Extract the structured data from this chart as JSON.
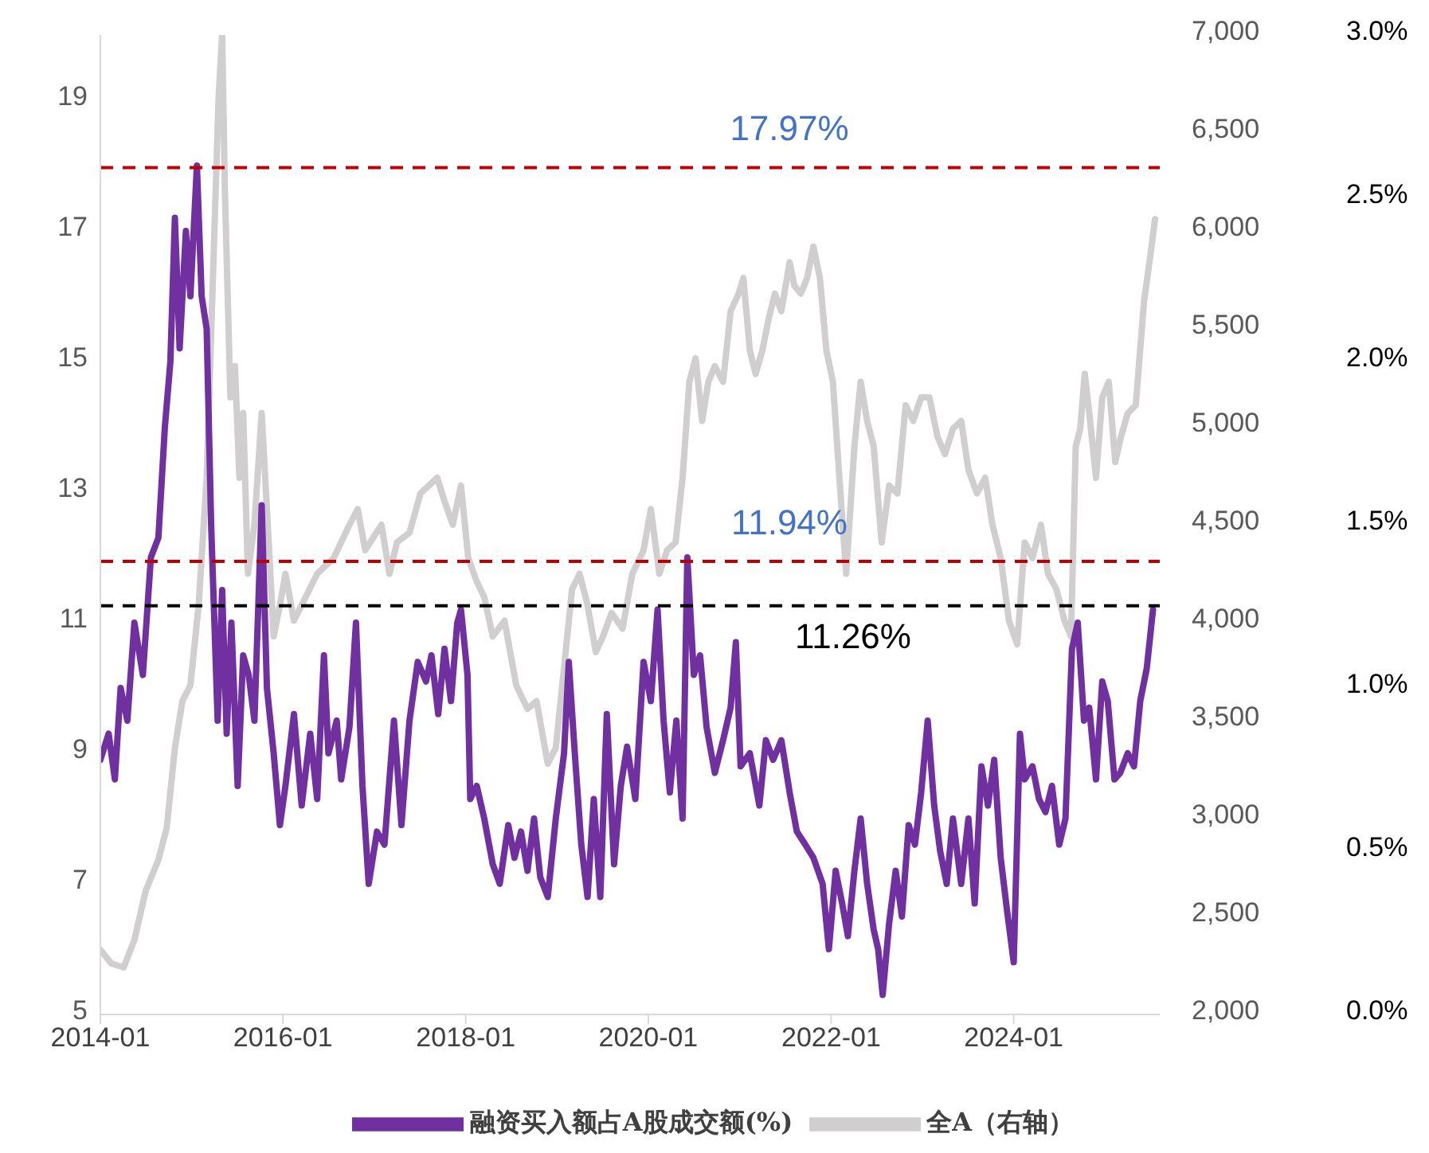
{
  "chart_data": {
    "type": "line",
    "xlim": [
      "2014-01-01",
      "2025-08-07"
    ],
    "xticks": [
      "2014-01",
      "2016-01",
      "2018-01",
      "2020-01",
      "2022-01",
      "2024-01"
    ],
    "ylim": [
      5,
      20
    ],
    "yticks": [
      5,
      7,
      9,
      11,
      13,
      15,
      17,
      19
    ],
    "y2lim": [
      2000,
      7000
    ],
    "y2ticks": [
      {
        "value": 2000,
        "label": "2,000"
      },
      {
        "value": 2500,
        "label": "2,500"
      },
      {
        "value": 3000,
        "label": "3,000"
      },
      {
        "value": 3500,
        "label": "3,500"
      },
      {
        "value": 4000,
        "label": "4,000"
      },
      {
        "value": 4500,
        "label": "4,500"
      },
      {
        "value": 5000,
        "label": "5,000"
      },
      {
        "value": 5500,
        "label": "5,500"
      },
      {
        "value": 6000,
        "label": "6,000"
      },
      {
        "value": 6500,
        "label": "6,500"
      },
      {
        "value": 7000,
        "label": "7,000"
      }
    ],
    "y3lim": [
      0,
      3
    ],
    "y3ticks": [
      {
        "value": 0,
        "label": "0.0%"
      },
      {
        "value": 0.5,
        "label": "0.5%"
      },
      {
        "value": 1,
        "label": "1.0%"
      },
      {
        "value": 1.5,
        "label": "1.5%"
      },
      {
        "value": 2,
        "label": "2.0%"
      },
      {
        "value": 2.5,
        "label": "2.5%"
      },
      {
        "value": 3,
        "label": "3.0%"
      }
    ],
    "legend": "bottom",
    "marker": "none",
    "ref_lines": [
      {
        "axis": "y",
        "value": 17.97,
        "label": "17.97%",
        "color": "#c00000",
        "line_style": "dashed"
      },
      {
        "axis": "y",
        "value": 11.94,
        "label": "11.94%",
        "color": "#c00000",
        "line_style": "dashed"
      },
      {
        "axis": "y",
        "value": 11.26,
        "label": "11.26%",
        "color": "#000000",
        "line_style": "dashed"
      }
    ],
    "series": [
      {
        "name": "融资买入额占A股成交额(%)",
        "color": "#7030a0",
        "x": [
          "2014-01-01",
          "2014-02-03",
          "2014-02-28",
          "2014-03-23",
          "2014-04-19",
          "2014-05-17",
          "2014-06-20",
          "2014-07-22",
          "2014-08-21",
          "2014-09-16",
          "2014-10-08",
          "2014-10-26",
          "2014-11-14",
          "2014-12-09",
          "2014-12-27",
          "2015-01-22",
          "2015-02-10",
          "2015-03-02",
          "2015-03-20",
          "2015-04-15",
          "2015-05-03",
          "2015-05-21",
          "2015-06-09",
          "2015-07-04",
          "2015-07-26",
          "2015-08-17",
          "2015-09-09",
          "2015-10-08",
          "2015-10-29",
          "2015-11-25",
          "2015-12-20",
          "2016-01-11",
          "2016-02-14",
          "2016-03-16",
          "2016-04-19",
          "2016-05-17",
          "2016-06-13",
          "2016-07-01",
          "2016-08-03",
          "2016-08-21",
          "2016-09-23",
          "2016-10-19",
          "2016-11-14",
          "2016-12-09",
          "2017-01-11",
          "2017-02-10",
          "2017-03-20",
          "2017-04-19",
          "2017-05-21",
          "2017-06-23",
          "2017-07-26",
          "2017-08-17",
          "2017-09-13",
          "2017-10-08",
          "2017-11-03",
          "2017-11-28",
          "2017-12-13",
          "2018-01-08",
          "2018-01-19",
          "2018-02-14",
          "2018-03-16",
          "2018-04-19",
          "2018-05-17",
          "2018-06-20",
          "2018-07-15",
          "2018-08-10",
          "2018-09-05",
          "2018-10-01",
          "2018-10-26",
          "2018-11-25",
          "2018-12-27",
          "2019-01-29",
          "2019-02-17",
          "2019-03-13",
          "2019-04-08",
          "2019-05-03",
          "2019-05-28",
          "2019-06-23",
          "2019-07-19",
          "2019-08-17",
          "2019-09-13",
          "2019-10-08",
          "2019-11-10",
          "2019-12-13",
          "2020-01-11",
          "2020-02-07",
          "2020-03-02",
          "2020-03-27",
          "2020-04-22",
          "2020-05-17",
          "2020-06-05",
          "2020-07-01",
          "2020-07-26",
          "2020-08-21",
          "2020-09-23",
          "2020-10-26",
          "2020-11-25",
          "2020-12-16",
          "2021-01-04",
          "2021-02-10",
          "2021-03-20",
          "2021-04-15",
          "2021-05-14",
          "2021-06-16",
          "2021-07-19",
          "2021-08-17",
          "2021-09-20",
          "2021-10-22",
          "2021-11-28",
          "2021-12-23",
          "2022-01-19",
          "2022-02-14",
          "2022-03-09",
          "2022-04-04",
          "2022-04-29",
          "2022-05-25",
          "2022-06-20",
          "2022-07-08",
          "2022-07-26",
          "2022-08-21",
          "2022-09-16",
          "2022-10-11",
          "2022-11-07",
          "2022-12-02",
          "2022-12-27",
          "2023-01-22",
          "2023-02-17",
          "2023-03-13",
          "2023-04-08",
          "2023-05-03",
          "2023-06-05",
          "2023-07-04",
          "2023-07-29",
          "2023-08-25",
          "2023-09-20",
          "2023-10-15",
          "2023-11-10",
          "2023-12-05",
          "2024-01-01",
          "2024-01-26",
          "2024-02-14",
          "2024-03-16",
          "2024-04-11",
          "2024-05-07",
          "2024-06-02",
          "2024-07-01",
          "2024-07-26",
          "2024-08-21",
          "2024-09-13",
          "2024-10-08",
          "2024-10-29",
          "2024-11-25",
          "2024-12-20",
          "2025-01-11",
          "2025-02-07",
          "2025-03-02",
          "2025-04-01",
          "2025-04-26",
          "2025-05-21",
          "2025-06-16",
          "2025-07-11"
        ],
        "values": [
          8.9,
          9.3,
          8.6,
          10.0,
          9.5,
          11.0,
          10.2,
          12.0,
          12.3,
          14.0,
          15.0,
          17.2,
          15.2,
          17.0,
          16.0,
          18.0,
          16.0,
          15.5,
          12.5,
          9.5,
          11.5,
          9.3,
          11.0,
          8.5,
          10.5,
          10.2,
          9.5,
          12.8,
          10.0,
          9.0,
          7.9,
          8.5,
          9.6,
          8.2,
          9.3,
          8.3,
          10.5,
          9.0,
          9.5,
          8.6,
          9.4,
          11.0,
          8.5,
          7.0,
          7.8,
          7.6,
          9.5,
          7.9,
          9.5,
          10.4,
          10.1,
          10.5,
          9.6,
          10.6,
          9.8,
          11.0,
          11.2,
          10.2,
          8.3,
          8.5,
          8.0,
          7.3,
          7.0,
          7.9,
          7.4,
          7.8,
          7.2,
          8.0,
          7.1,
          6.8,
          8.0,
          9.0,
          10.4,
          9.0,
          7.6,
          6.8,
          8.3,
          6.8,
          9.6,
          7.3,
          8.5,
          9.1,
          8.3,
          10.4,
          9.8,
          11.2,
          9.5,
          8.4,
          9.5,
          8.0,
          12.0,
          10.2,
          10.5,
          9.4,
          8.7,
          9.2,
          9.7,
          10.7,
          8.8,
          9.0,
          8.2,
          9.2,
          8.9,
          9.2,
          8.4,
          7.8,
          7.6,
          7.4,
          7.0,
          6.0,
          7.2,
          6.7,
          6.2,
          7.2,
          8.0,
          7.0,
          6.3,
          6.0,
          5.3,
          6.4,
          7.2,
          6.5,
          7.9,
          7.6,
          8.4,
          9.5,
          8.2,
          7.5,
          7.0,
          8.0,
          7.0,
          8.0,
          6.7,
          8.8,
          8.2,
          8.9,
          7.4,
          6.6,
          5.8,
          9.3,
          8.6,
          8.8,
          8.3,
          8.1,
          8.5,
          7.6,
          8.0,
          10.6,
          11.0,
          9.5,
          9.7,
          8.6,
          10.1,
          9.8,
          8.6,
          8.7,
          9.0,
          8.8,
          9.8,
          10.3,
          11.2
        ]
      },
      {
        "name": "全A（右轴）",
        "color": "#d0cece",
        "axis": "y2",
        "x": [
          "2014-01-01",
          "2014-02-14",
          "2014-04-04",
          "2014-05-17",
          "2014-07-01",
          "2014-08-21",
          "2014-09-23",
          "2014-10-26",
          "2014-11-25",
          "2014-12-27",
          "2015-01-29",
          "2015-03-02",
          "2015-04-01",
          "2015-04-19",
          "2015-05-03",
          "2015-05-14",
          "2015-06-05",
          "2015-06-23",
          "2015-07-11",
          "2015-07-26",
          "2015-08-14",
          "2015-09-09",
          "2015-10-08",
          "2015-10-29",
          "2015-11-25",
          "2015-12-20",
          "2016-01-11",
          "2016-02-14",
          "2016-03-16",
          "2016-05-17",
          "2016-07-22",
          "2016-09-23",
          "2016-10-26",
          "2016-11-25",
          "2017-01-29",
          "2017-03-02",
          "2017-04-01",
          "2017-05-21",
          "2017-07-04",
          "2017-09-09",
          "2017-10-08",
          "2017-11-10",
          "2017-12-13",
          "2018-01-11",
          "2018-02-14",
          "2018-03-16",
          "2018-04-19",
          "2018-06-05",
          "2018-07-22",
          "2018-09-05",
          "2018-10-11",
          "2018-11-25",
          "2018-12-27",
          "2019-01-29",
          "2019-03-02",
          "2019-04-01",
          "2019-05-03",
          "2019-06-05",
          "2019-07-04",
          "2019-08-07",
          "2019-09-20",
          "2019-10-29",
          "2019-12-13",
          "2020-01-11",
          "2020-02-14",
          "2020-03-16",
          "2020-04-19",
          "2020-05-17",
          "2020-06-13",
          "2020-07-08",
          "2020-08-03",
          "2020-08-28",
          "2020-09-23",
          "2020-10-26",
          "2020-11-25",
          "2020-12-27",
          "2021-01-15",
          "2021-02-10",
          "2021-03-05",
          "2021-04-01",
          "2021-04-26",
          "2021-05-21",
          "2021-06-16",
          "2021-07-19",
          "2021-08-07",
          "2021-09-02",
          "2021-09-27",
          "2021-10-22",
          "2021-11-17",
          "2021-12-13",
          "2022-01-08",
          "2022-02-03",
          "2022-03-02",
          "2022-04-04",
          "2022-04-29",
          "2022-05-25",
          "2022-06-20",
          "2022-07-22",
          "2022-08-21",
          "2022-09-23",
          "2022-10-26",
          "2022-11-25",
          "2022-12-27",
          "2023-01-29",
          "2023-03-02",
          "2023-04-01",
          "2023-05-03",
          "2023-06-05",
          "2023-07-04",
          "2023-08-07",
          "2023-09-09",
          "2023-10-08",
          "2023-11-10",
          "2023-12-13",
          "2024-01-15",
          "2024-02-14",
          "2024-03-16",
          "2024-04-19",
          "2024-05-17",
          "2024-06-20",
          "2024-07-22",
          "2024-08-17",
          "2024-09-05",
          "2024-09-23",
          "2024-10-11",
          "2024-10-29",
          "2024-11-25",
          "2024-12-20",
          "2025-01-15",
          "2025-02-10",
          "2025-03-05",
          "2025-04-01",
          "2025-05-03",
          "2025-06-05",
          "2025-07-01",
          "2025-07-19"
        ],
        "values": [
          2330,
          2260,
          2240,
          2380,
          2630,
          2790,
          2950,
          3360,
          3600,
          3680,
          4090,
          4740,
          5960,
          6690,
          7000,
          6200,
          5150,
          5310,
          4740,
          5070,
          4250,
          4500,
          5070,
          4580,
          3930,
          4090,
          4250,
          4010,
          4090,
          4250,
          4330,
          4500,
          4580,
          4370,
          4500,
          4250,
          4410,
          4460,
          4660,
          4740,
          4620,
          4500,
          4700,
          4330,
          4210,
          4130,
          3930,
          4010,
          3680,
          3560,
          3600,
          3280,
          3360,
          3770,
          4170,
          4250,
          4090,
          3850,
          3930,
          4050,
          3970,
          4250,
          4370,
          4580,
          4250,
          4370,
          4410,
          4740,
          5230,
          5350,
          5030,
          5230,
          5310,
          5230,
          5590,
          5680,
          5760,
          5390,
          5270,
          5390,
          5550,
          5680,
          5590,
          5840,
          5720,
          5680,
          5760,
          5920,
          5760,
          5390,
          5230,
          4740,
          4250,
          4900,
          5230,
          5030,
          4900,
          4410,
          4700,
          4660,
          5110,
          5030,
          5150,
          5150,
          4950,
          4860,
          4990,
          5030,
          4780,
          4660,
          4740,
          4500,
          4330,
          4010,
          3890,
          4410,
          4330,
          4500,
          4250,
          4170,
          4010,
          3930,
          4900,
          4990,
          5270,
          5070,
          4740,
          5150,
          5230,
          4820,
          4950,
          5070,
          5110,
          5640,
          5880,
          6060
        ]
      }
    ]
  }
}
